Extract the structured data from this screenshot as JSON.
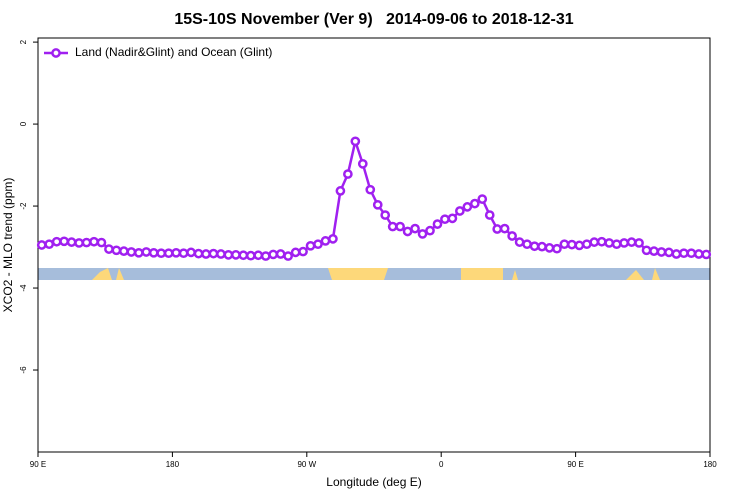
{
  "chart_data": {
    "type": "line",
    "title": "15S-10S November (Ver 9)   2014-09-06 to 2018-12-31",
    "xlabel": "Longitude (deg E)",
    "ylabel": "XCO2 - MLO trend (ppm)",
    "x": [
      92.5,
      97.5,
      102.5,
      107.5,
      112.5,
      117.5,
      122.5,
      127.5,
      132.5,
      137.5,
      142.5,
      147.5,
      152.5,
      157.5,
      162.5,
      167.5,
      172.5,
      177.5,
      182.5,
      187.5,
      192.5,
      197.5,
      202.5,
      207.5,
      212.5,
      217.5,
      222.5,
      227.5,
      232.5,
      237.5,
      242.5,
      247.5,
      252.5,
      257.5,
      262.5,
      267.5,
      272.5,
      277.5,
      282.5,
      287.5,
      292.5,
      297.5,
      302.5,
      307.5,
      312.5,
      317.5,
      322.5,
      327.5,
      332.5,
      337.5,
      342.5,
      347.5,
      352.5,
      357.5,
      362.5,
      367.5,
      372.5,
      377.5,
      382.5,
      387.5,
      392.5,
      397.5,
      402.5,
      407.5,
      412.5,
      417.5,
      422.5,
      427.5,
      432.5,
      437.5,
      442.5,
      447.5,
      452.5,
      457.5,
      462.5,
      467.5,
      472.5,
      477.5,
      482.5,
      487.5,
      492.5,
      497.5,
      502.5,
      507.5,
      512.5,
      517.5,
      522.5,
      527.5,
      532.5,
      537.5
    ],
    "series": [
      {
        "name": "Land (Nadir&Glint) and Ocean (Glint)",
        "color": "#a020f0",
        "values": [
          -2.95,
          -2.93,
          -2.87,
          -2.86,
          -2.88,
          -2.9,
          -2.89,
          -2.87,
          -2.89,
          -3.05,
          -3.08,
          -3.1,
          -3.12,
          -3.14,
          -3.12,
          -3.14,
          -3.15,
          -3.15,
          -3.14,
          -3.15,
          -3.13,
          -3.16,
          -3.17,
          -3.16,
          -3.17,
          -3.19,
          -3.19,
          -3.2,
          -3.21,
          -3.2,
          -3.22,
          -3.18,
          -3.17,
          -3.22,
          -3.13,
          -3.11,
          -2.97,
          -2.93,
          -2.85,
          -2.8,
          -1.63,
          -1.22,
          -0.42,
          -0.97,
          -1.6,
          -1.97,
          -2.22,
          -2.5,
          -2.5,
          -2.62,
          -2.55,
          -2.68,
          -2.6,
          -2.44,
          -2.32,
          -2.3,
          -2.12,
          -2.02,
          -1.94,
          -1.83,
          -2.22,
          -2.56,
          -2.55,
          -2.73,
          -2.88,
          -2.93,
          -2.98,
          -2.99,
          -3.02,
          -3.04,
          -2.93,
          -2.94,
          -2.96,
          -2.93,
          -2.88,
          -2.87,
          -2.9,
          -2.93,
          -2.9,
          -2.88,
          -2.9,
          -3.08,
          -3.1,
          -3.12,
          -3.13,
          -3.17,
          -3.15,
          -3.15,
          -3.17,
          -3.18
        ]
      }
    ],
    "xlim": [
      90,
      540
    ],
    "xticks": [
      {
        "value": 90,
        "label": "90 E"
      },
      180,
      {
        "value": 270,
        "label": "90 W"
      },
      {
        "value": 360,
        "label": "0"
      },
      {
        "value": 450,
        "label": "90 E"
      },
      {
        "value": 540,
        "label": "180"
      }
    ],
    "ylim": [
      -8,
      2.1
    ],
    "yticks": [
      2,
      0,
      -2,
      -4,
      -6
    ],
    "legend": "top-left"
  }
}
